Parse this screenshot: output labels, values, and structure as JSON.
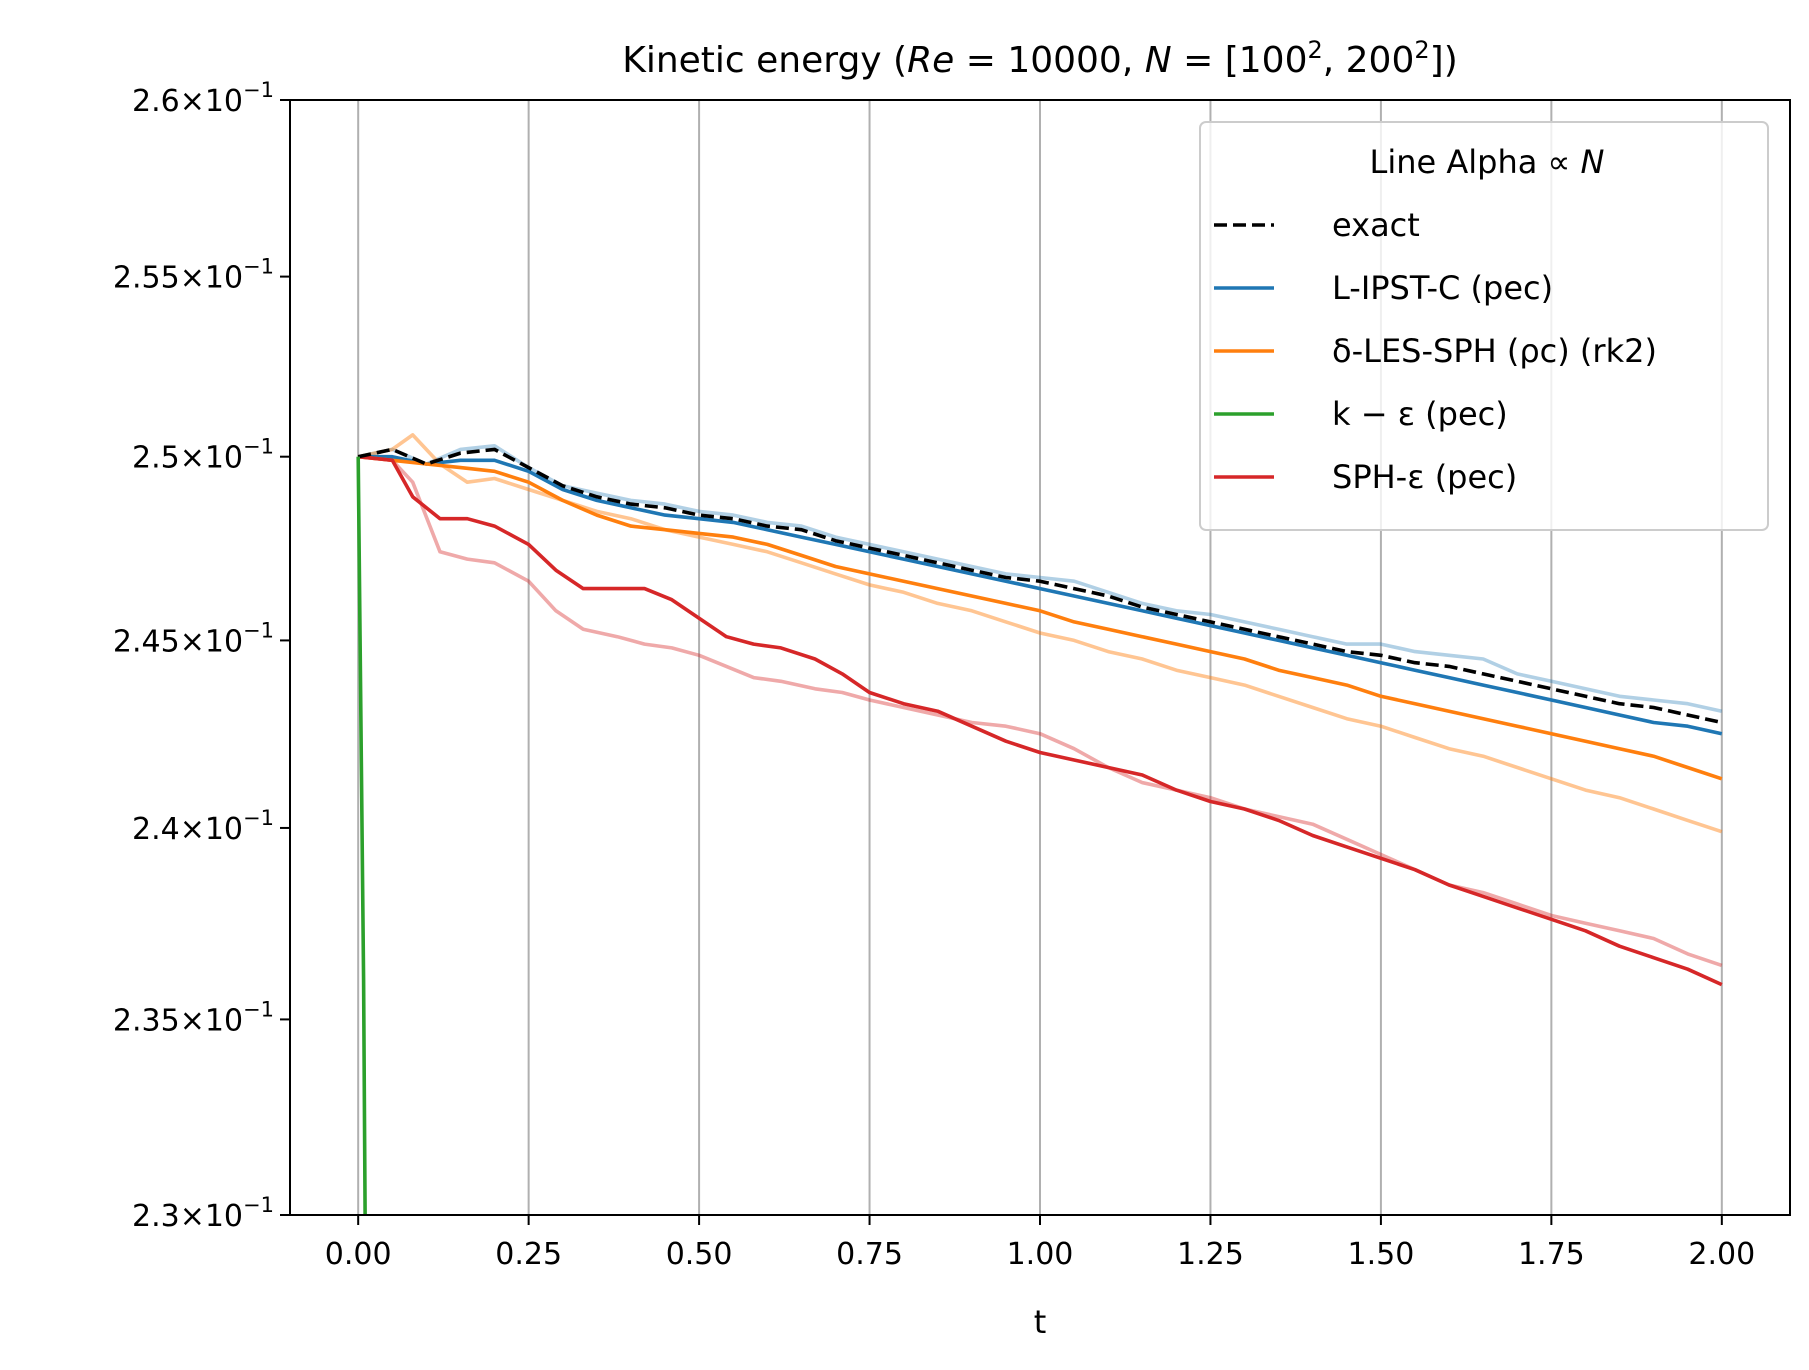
{
  "chart_data": {
    "type": "line",
    "title": "Kinetic energy  (Re = 10000, N = [100², 200²])",
    "title_parts": {
      "prefix": "Kinetic energy  (",
      "re_symbol": "Re",
      "re_value": " = 10000, ",
      "n_symbol": "N",
      "n_value": " = [100",
      "sup1": "2",
      "mid": ", 200",
      "sup2": "2",
      "suffix": "])"
    },
    "xlabel": "t",
    "ylabel": "",
    "xlim": [
      -0.1,
      2.1
    ],
    "ylim": [
      0.23,
      0.26
    ],
    "yscale": "log",
    "grid": "x-major",
    "x_ticks": [
      0.0,
      0.25,
      0.5,
      0.75,
      1.0,
      1.25,
      1.5,
      1.75,
      2.0
    ],
    "x_tick_labels": [
      "0.00",
      "0.25",
      "0.50",
      "0.75",
      "1.00",
      "1.25",
      "1.50",
      "1.75",
      "2.00"
    ],
    "y_ticks": [
      0.23,
      0.235,
      0.24,
      0.245,
      0.25,
      0.255,
      0.26
    ],
    "y_tick_labels": [
      {
        "mant": "2.3",
        "exp": "−1"
      },
      {
        "mant": "2.35",
        "exp": "−1"
      },
      {
        "mant": "2.4",
        "exp": "−1"
      },
      {
        "mant": "2.45",
        "exp": "−1"
      },
      {
        "mant": "2.5",
        "exp": "−1"
      },
      {
        "mant": "2.55",
        "exp": "−1"
      },
      {
        "mant": "2.6",
        "exp": "−1"
      }
    ],
    "legend": {
      "placement": "top-right",
      "title": "Line Alpha ∝ N",
      "title_text": "Line Alpha ∝ ",
      "title_symbol": "N",
      "entries": [
        {
          "label": "exact",
          "color": "#000000",
          "dash": true
        },
        {
          "label": "L-IPST-C (pec)",
          "color": "#1f77b4",
          "dash": false
        },
        {
          "label": "δ-LES-SPH (ρc) (rk2)",
          "color": "#ff7f0e",
          "dash": false
        },
        {
          "label": "k − ε (pec)",
          "color": "#2ca02c",
          "dash": false
        },
        {
          "label": "SPH-ε (pec)",
          "color": "#d62728",
          "dash": false
        }
      ]
    },
    "series": [
      {
        "name": "L-IPST-C (pec) N=100²",
        "color": "#1f77b4",
        "alpha": 0.35,
        "x": [
          0,
          0.05,
          0.1,
          0.15,
          0.2,
          0.25,
          0.3,
          0.35,
          0.4,
          0.45,
          0.5,
          0.55,
          0.6,
          0.65,
          0.7,
          0.75,
          0.8,
          0.85,
          0.9,
          0.95,
          1.0,
          1.05,
          1.1,
          1.15,
          1.2,
          1.25,
          1.3,
          1.35,
          1.4,
          1.45,
          1.5,
          1.55,
          1.6,
          1.65,
          1.7,
          1.75,
          1.8,
          1.85,
          1.9,
          1.95,
          2.0
        ],
        "y": [
          0.25,
          0.2502,
          0.2498,
          0.2502,
          0.2503,
          0.2497,
          0.2492,
          0.249,
          0.2488,
          0.2487,
          0.2485,
          0.2484,
          0.2482,
          0.2481,
          0.2478,
          0.2476,
          0.2474,
          0.2472,
          0.247,
          0.2468,
          0.2467,
          0.2466,
          0.2463,
          0.246,
          0.2458,
          0.2457,
          0.2455,
          0.2453,
          0.2451,
          0.2449,
          0.2449,
          0.2447,
          0.2446,
          0.2445,
          0.2441,
          0.2439,
          0.2437,
          0.2435,
          0.2434,
          0.2433,
          0.2431
        ]
      },
      {
        "name": "δ-LES-SPH N=100²",
        "color": "#ff7f0e",
        "alpha": 0.45,
        "x": [
          0,
          0.05,
          0.08,
          0.12,
          0.16,
          0.2,
          0.25,
          0.3,
          0.35,
          0.4,
          0.45,
          0.5,
          0.55,
          0.6,
          0.65,
          0.7,
          0.75,
          0.8,
          0.85,
          0.9,
          0.95,
          1.0,
          1.05,
          1.1,
          1.15,
          1.2,
          1.25,
          1.3,
          1.35,
          1.4,
          1.45,
          1.5,
          1.55,
          1.6,
          1.65,
          1.7,
          1.75,
          1.8,
          1.85,
          1.9,
          1.95,
          2.0
        ],
        "y": [
          0.25,
          0.2502,
          0.2506,
          0.2498,
          0.2493,
          0.2494,
          0.2491,
          0.2488,
          0.2485,
          0.2483,
          0.248,
          0.2478,
          0.2476,
          0.2474,
          0.2471,
          0.2468,
          0.2465,
          0.2463,
          0.246,
          0.2458,
          0.2455,
          0.2452,
          0.245,
          0.2447,
          0.2445,
          0.2442,
          0.244,
          0.2438,
          0.2435,
          0.2432,
          0.2429,
          0.2427,
          0.2424,
          0.2421,
          0.2419,
          0.2416,
          0.2413,
          0.241,
          0.2408,
          0.2405,
          0.2402,
          0.2399
        ]
      },
      {
        "name": "SPH-ε N=100²",
        "color": "#d62728",
        "alpha": 0.4,
        "x": [
          0,
          0.05,
          0.08,
          0.12,
          0.16,
          0.2,
          0.25,
          0.29,
          0.33,
          0.38,
          0.42,
          0.46,
          0.5,
          0.54,
          0.58,
          0.62,
          0.67,
          0.71,
          0.75,
          0.8,
          0.85,
          0.9,
          0.95,
          1.0,
          1.05,
          1.1,
          1.15,
          1.2,
          1.25,
          1.3,
          1.35,
          1.4,
          1.45,
          1.5,
          1.55,
          1.6,
          1.65,
          1.7,
          1.75,
          1.8,
          1.85,
          1.9,
          1.95,
          2.0
        ],
        "y": [
          0.25,
          0.2499,
          0.2493,
          0.2474,
          0.2472,
          0.2471,
          0.2466,
          0.2458,
          0.2453,
          0.2451,
          0.2449,
          0.2448,
          0.2446,
          0.2443,
          0.244,
          0.2439,
          0.2437,
          0.2436,
          0.2434,
          0.2432,
          0.243,
          0.2428,
          0.2427,
          0.2425,
          0.2421,
          0.2416,
          0.2412,
          0.241,
          0.2408,
          0.2405,
          0.2403,
          0.2401,
          0.2397,
          0.2393,
          0.2389,
          0.2385,
          0.2383,
          0.238,
          0.2377,
          0.2375,
          0.2373,
          0.2371,
          0.2367,
          0.2364
        ]
      },
      {
        "name": "L-IPST-C (pec) N=200²",
        "color": "#1f77b4",
        "alpha": 1.0,
        "x": [
          0,
          0.05,
          0.1,
          0.15,
          0.2,
          0.25,
          0.3,
          0.35,
          0.4,
          0.45,
          0.5,
          0.55,
          0.6,
          0.65,
          0.7,
          0.75,
          0.8,
          0.85,
          0.9,
          0.95,
          1.0,
          1.05,
          1.1,
          1.15,
          1.2,
          1.25,
          1.3,
          1.35,
          1.4,
          1.45,
          1.5,
          1.55,
          1.6,
          1.65,
          1.7,
          1.75,
          1.8,
          1.85,
          1.9,
          1.95,
          2.0
        ],
        "y": [
          0.25,
          0.25,
          0.2498,
          0.2499,
          0.2499,
          0.2496,
          0.2491,
          0.2488,
          0.2486,
          0.2484,
          0.2483,
          0.2482,
          0.248,
          0.2478,
          0.2476,
          0.2474,
          0.2472,
          0.247,
          0.2468,
          0.2466,
          0.2464,
          0.2462,
          0.246,
          0.2458,
          0.2456,
          0.2454,
          0.2452,
          0.245,
          0.2448,
          0.2446,
          0.2444,
          0.2442,
          0.244,
          0.2438,
          0.2436,
          0.2434,
          0.2432,
          0.243,
          0.2428,
          0.2427,
          0.2425
        ]
      },
      {
        "name": "δ-LES-SPH N=200²",
        "color": "#ff7f0e",
        "alpha": 1.0,
        "x": [
          0,
          0.05,
          0.1,
          0.15,
          0.2,
          0.25,
          0.3,
          0.35,
          0.4,
          0.45,
          0.5,
          0.55,
          0.6,
          0.65,
          0.7,
          0.75,
          0.8,
          0.85,
          0.9,
          0.95,
          1.0,
          1.05,
          1.1,
          1.15,
          1.2,
          1.25,
          1.3,
          1.35,
          1.4,
          1.45,
          1.5,
          1.55,
          1.6,
          1.65,
          1.7,
          1.75,
          1.8,
          1.85,
          1.9,
          1.95,
          2.0
        ],
        "y": [
          0.25,
          0.2499,
          0.2498,
          0.2497,
          0.2496,
          0.2493,
          0.2488,
          0.2484,
          0.2481,
          0.248,
          0.2479,
          0.2478,
          0.2476,
          0.2473,
          0.247,
          0.2468,
          0.2466,
          0.2464,
          0.2462,
          0.246,
          0.2458,
          0.2455,
          0.2453,
          0.2451,
          0.2449,
          0.2447,
          0.2445,
          0.2442,
          0.244,
          0.2438,
          0.2435,
          0.2433,
          0.2431,
          0.2429,
          0.2427,
          0.2425,
          0.2423,
          0.2421,
          0.2419,
          0.2416,
          0.2413
        ]
      },
      {
        "name": "SPH-ε N=200²",
        "color": "#d62728",
        "alpha": 1.0,
        "x": [
          0,
          0.05,
          0.08,
          0.12,
          0.16,
          0.2,
          0.25,
          0.29,
          0.33,
          0.38,
          0.42,
          0.46,
          0.5,
          0.54,
          0.58,
          0.62,
          0.67,
          0.71,
          0.75,
          0.8,
          0.85,
          0.9,
          0.95,
          1.0,
          1.05,
          1.1,
          1.15,
          1.2,
          1.25,
          1.3,
          1.35,
          1.4,
          1.45,
          1.5,
          1.55,
          1.6,
          1.65,
          1.7,
          1.75,
          1.8,
          1.85,
          1.9,
          1.95,
          2.0
        ],
        "y": [
          0.25,
          0.2499,
          0.2489,
          0.2483,
          0.2483,
          0.2481,
          0.2476,
          0.2469,
          0.2464,
          0.2464,
          0.2464,
          0.2461,
          0.2456,
          0.2451,
          0.2449,
          0.2448,
          0.2445,
          0.2441,
          0.2436,
          0.2433,
          0.2431,
          0.2427,
          0.2423,
          0.242,
          0.2418,
          0.2416,
          0.2414,
          0.241,
          0.2407,
          0.2405,
          0.2402,
          0.2398,
          0.2395,
          0.2392,
          0.2389,
          0.2385,
          0.2382,
          0.2379,
          0.2376,
          0.2373,
          0.2369,
          0.2366,
          0.2363,
          0.2359
        ]
      },
      {
        "name": "exact",
        "color": "#000000",
        "alpha": 1.0,
        "dash": true,
        "x": [
          0,
          0.05,
          0.1,
          0.15,
          0.2,
          0.25,
          0.3,
          0.35,
          0.4,
          0.45,
          0.5,
          0.55,
          0.6,
          0.65,
          0.7,
          0.75,
          0.8,
          0.85,
          0.9,
          0.95,
          1.0,
          1.05,
          1.1,
          1.15,
          1.2,
          1.25,
          1.3,
          1.35,
          1.4,
          1.45,
          1.5,
          1.55,
          1.6,
          1.65,
          1.7,
          1.75,
          1.8,
          1.85,
          1.9,
          1.95,
          2.0
        ],
        "y": [
          0.25,
          0.2502,
          0.2498,
          0.2501,
          0.2502,
          0.2497,
          0.2492,
          0.2489,
          0.2487,
          0.2486,
          0.2484,
          0.2483,
          0.2481,
          0.248,
          0.2477,
          0.2475,
          0.2473,
          0.2471,
          0.2469,
          0.2467,
          0.2466,
          0.2464,
          0.2462,
          0.2459,
          0.2457,
          0.2455,
          0.2453,
          0.2451,
          0.2449,
          0.2447,
          0.2446,
          0.2444,
          0.2443,
          0.2441,
          0.2439,
          0.2437,
          0.2435,
          0.2433,
          0.2432,
          0.243,
          0.2428
        ]
      },
      {
        "name": "k − ε (pec)",
        "color": "#2ca02c",
        "alpha": 1.0,
        "x": [
          0,
          0.008,
          0.012
        ],
        "y": [
          0.25,
          0.236,
          0.225
        ]
      }
    ]
  }
}
